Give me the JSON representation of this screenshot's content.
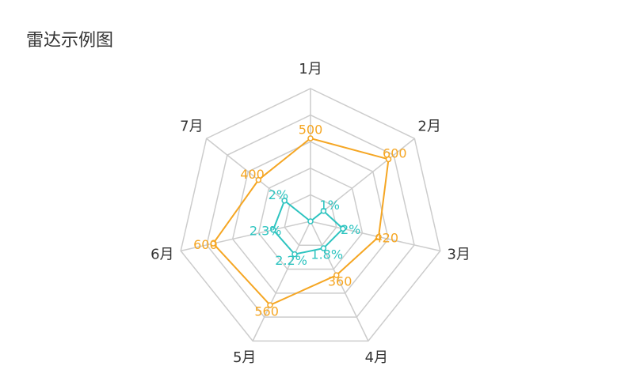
{
  "chart_data": {
    "type": "radar",
    "title": "雷达示例图",
    "categories": [
      "1月",
      "2月",
      "3月",
      "4月",
      "5月",
      "6月",
      "7月"
    ],
    "rlim": [
      0,
      800
    ],
    "series": [
      {
        "color": "#f5a623",
        "values": [
          500,
          600,
          420,
          360,
          560,
          600,
          400
        ]
      },
      {
        "color": "#2ec4c0",
        "rlim": [
          0,
          8
        ],
        "values": [
          0,
          1,
          2,
          1.8,
          2.2,
          2.3,
          2
        ],
        "value_labels": [
          null,
          "1%",
          "2%",
          "1.8%",
          "2.2%",
          "2.3%",
          "2%"
        ]
      }
    ]
  }
}
